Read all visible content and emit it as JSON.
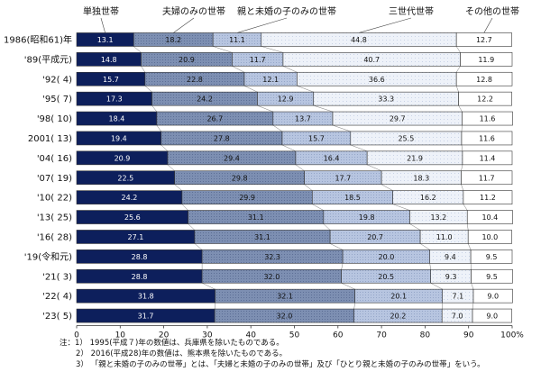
{
  "chart_data": {
    "type": "bar",
    "orientation": "horizontal",
    "stacked": "percent",
    "categories": [
      "1986(昭和61)年",
      "'89(平成元)",
      "'92(  4)",
      "'95(  7)",
      "'98(  10)",
      "2001(  13)",
      "'04(  16)",
      "'07(  19)",
      "'10(  22)",
      "'13(  25)",
      "'16(  28)",
      "'19(令和元)",
      "'21(  3)",
      "'22(  4)",
      "'23(  5)"
    ],
    "series": [
      {
        "name": "単独世帯",
        "color": "#0d1f5c",
        "values": [
          13.1,
          14.8,
          15.7,
          17.3,
          18.4,
          19.4,
          20.9,
          22.5,
          24.2,
          25.6,
          27.1,
          28.8,
          28.8,
          31.8,
          31.7
        ]
      },
      {
        "name": "夫婦のみの世帯",
        "color": "#7d8fb2",
        "values": [
          18.2,
          20.9,
          22.8,
          24.2,
          26.7,
          27.8,
          29.4,
          29.8,
          29.9,
          31.1,
          31.1,
          32.3,
          32.0,
          32.1,
          32.0
        ]
      },
      {
        "name": "親と未婚の子のみの世帯",
        "color": "#b2c0dc",
        "values": [
          11.1,
          11.7,
          12.1,
          12.9,
          13.7,
          15.7,
          16.4,
          17.7,
          18.5,
          19.8,
          20.7,
          20.0,
          20.5,
          20.1,
          20.2
        ]
      },
      {
        "name": "三世代世帯",
        "color": "#e9eef7",
        "values": [
          44.8,
          40.7,
          36.6,
          33.3,
          29.7,
          25.5,
          21.9,
          18.3,
          16.2,
          13.2,
          11.0,
          9.4,
          9.3,
          7.1,
          7.0
        ]
      },
      {
        "name": "その他の世帯",
        "color": "#ffffff",
        "values": [
          12.7,
          11.9,
          12.8,
          12.2,
          11.6,
          11.6,
          11.4,
          11.7,
          11.2,
          10.4,
          10.0,
          9.5,
          9.5,
          9.0,
          9.0
        ]
      }
    ],
    "xlim": [
      0,
      100
    ],
    "xticks": [
      "0",
      "10",
      "20",
      "30",
      "40",
      "50",
      "60",
      "70",
      "80",
      "90",
      "100%"
    ],
    "legend_placement": "top"
  },
  "notes": [
    "注：1） 1995(平成７)年の数値は、兵庫県を除いたものである。",
    "2） 2016(平成28)年の数値は、熊本県を除いたものである。",
    "3） 「親と未婚の子のみの世帯」とは、「夫婦と未婚の子のみの世帯」及び「ひとり親と未婚の子のみの世帯」をいう。"
  ]
}
